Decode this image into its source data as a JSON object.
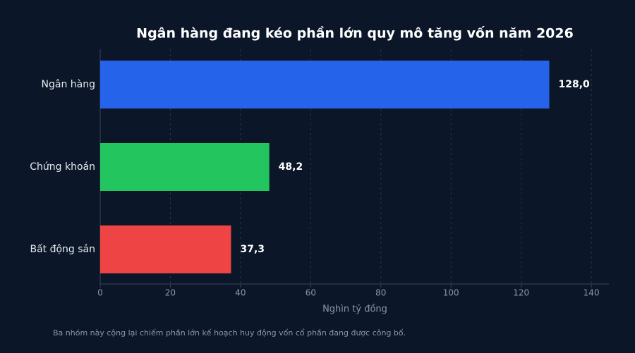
{
  "chart_data": {
    "type": "hbar",
    "title": "Ngân hàng đang kéo phần lớn quy mô tăng vốn năm 2026",
    "categories": [
      "Ngân hàng",
      "Chứng khoán",
      "Bất động sản"
    ],
    "values": [
      128.0,
      48.2,
      37.3
    ],
    "value_labels": [
      "128,0",
      "48,2",
      "37,3"
    ],
    "colors": [
      "#2563eb",
      "#22c55e",
      "#ef4444"
    ],
    "xlim": [
      0,
      145
    ],
    "xticks": [
      0,
      20,
      40,
      60,
      80,
      100,
      120,
      140
    ],
    "xlabel": "Nghìn tỷ đồng",
    "grid": true,
    "note": "Ba nhóm này cộng lại chiếm phần lớn kế hoạch huy động vốn cổ phần đang được công bố."
  }
}
